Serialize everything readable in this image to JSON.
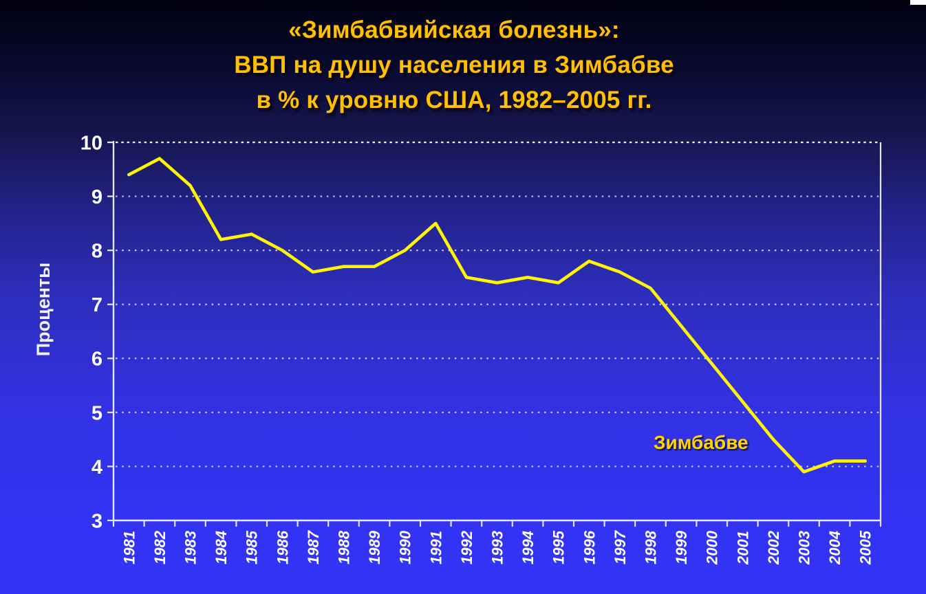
{
  "slide": {
    "title_lines": [
      "«Зимбабвийская болезнь»:",
      "ВВП на душу населения в Зимбабве",
      "в % к уровню США, 1982–2005 гг."
    ],
    "title_color": "#FFC000",
    "background_top_color": "#010112",
    "background_bottom_color": "#3434F7"
  },
  "chart_data": {
    "type": "line",
    "title": "«Зимбабвийская болезнь»: ВВП на душу населения в Зимбабве в % к уровню США, 1982–2005 гг.",
    "xlabel": "",
    "ylabel": "Проценты",
    "ylim": [
      3,
      10
    ],
    "yticks": [
      3,
      4,
      5,
      6,
      7,
      8,
      9,
      10
    ],
    "grid": "horizontal-dotted-white",
    "xtick_rotation": 90,
    "legend_position": "none (inline annotation)",
    "categories": [
      "1981",
      "1982",
      "1983",
      "1984",
      "1985",
      "1986",
      "1987",
      "1988",
      "1989",
      "1990",
      "1991",
      "1992",
      "1993",
      "1994",
      "1995",
      "1996",
      "1997",
      "1998",
      "1999",
      "2000",
      "2001",
      "2002",
      "2003",
      "2004",
      "2005"
    ],
    "series": [
      {
        "name": "Зимбабве",
        "color": "#FFF500",
        "values": [
          9.4,
          9.7,
          9.2,
          8.2,
          8.3,
          8.0,
          7.6,
          7.7,
          7.7,
          8.0,
          8.5,
          7.5,
          7.4,
          7.5,
          7.4,
          7.8,
          7.6,
          7.3,
          6.6,
          5.9,
          5.2,
          4.5,
          3.9,
          4.1,
          4.1
        ]
      }
    ],
    "annotation": {
      "text": "Зимбабве",
      "x_year": 1998.1,
      "y_value": 4.45,
      "color": "#FFD500"
    }
  }
}
